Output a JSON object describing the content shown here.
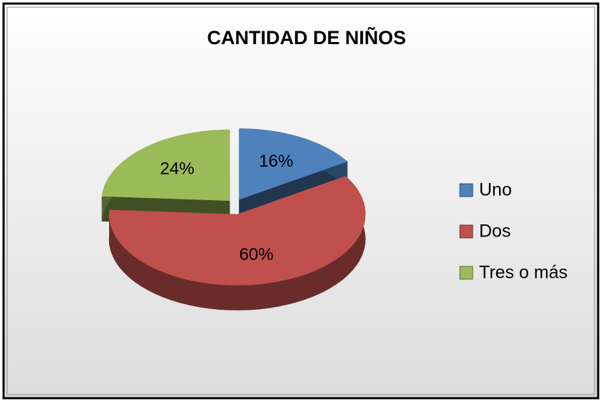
{
  "chart_data": {
    "type": "pie",
    "title": "CANTIDAD DE NIÑOS",
    "categories": [
      "Uno",
      "Dos",
      "Tres o más"
    ],
    "values": [
      16,
      60,
      24
    ],
    "value_labels": [
      "16%",
      "60%",
      "24%"
    ],
    "colors": [
      "#4f81bd",
      "#c0504d",
      "#9bbb59"
    ],
    "legend": "right"
  }
}
